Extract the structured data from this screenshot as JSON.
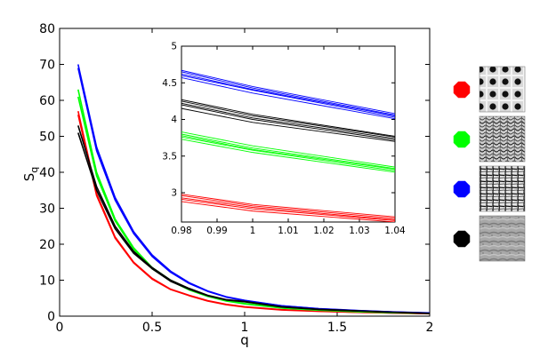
{
  "chart_data": [
    {
      "type": "line",
      "xlabel": "q",
      "ylabel": "S",
      "ylabel_sub": "q",
      "xlim": [
        0,
        2
      ],
      "ylim": [
        0,
        80
      ],
      "grid": false,
      "x_ticks": [
        0,
        0.5,
        1,
        1.5,
        2
      ],
      "x_tick_labels": [
        "0",
        "0.5",
        "1",
        "1.5",
        "2"
      ],
      "y_ticks": [
        0,
        10,
        20,
        30,
        40,
        50,
        60,
        70,
        80
      ],
      "y_tick_labels": [
        "0",
        "10",
        "20",
        "30",
        "40",
        "50",
        "60",
        "70",
        "80"
      ],
      "series": [
        {
          "color": "#ff0000",
          "x": [
            0.1,
            0.2,
            0.3,
            0.4,
            0.5,
            0.6,
            0.7,
            0.8,
            0.9,
            1.0,
            1.2,
            1.4,
            1.6,
            1.8,
            2.0
          ],
          "lines": [
            [
              57,
              34,
              22,
              15,
              10.5,
              7.5,
              5.8,
              4.3,
              3.3,
              2.6,
              1.8,
              1.4,
              1.1,
              0.9,
              0.7
            ],
            [
              56,
              33.5,
              21.7,
              14.8,
              10.3,
              7.4,
              5.7,
              4.2,
              3.2,
              2.5,
              1.7,
              1.35,
              1.05,
              0.85,
              0.65
            ]
          ]
        },
        {
          "color": "#00ff00",
          "x": [
            0.1,
            0.2,
            0.3,
            0.4,
            0.5,
            0.6,
            0.7,
            0.8,
            0.9,
            1.0,
            1.2,
            1.4,
            1.6,
            1.8,
            2.0
          ],
          "lines": [
            [
              63,
              40,
              27,
              19,
              13.5,
              10,
              7.5,
              5.6,
              4.3,
              3.5,
              2.3,
              1.7,
              1.3,
              1.0,
              0.8
            ],
            [
              61,
              39,
              26.5,
              18.6,
              13.2,
              9.8,
              7.3,
              5.5,
              4.2,
              3.4,
              2.25,
              1.65,
              1.25,
              0.95,
              0.75
            ]
          ]
        },
        {
          "color": "#0000ff",
          "x": [
            0.1,
            0.2,
            0.3,
            0.4,
            0.5,
            0.6,
            0.7,
            0.8,
            0.9,
            1.0,
            1.2,
            1.4,
            1.6,
            1.8,
            2.0
          ],
          "lines": [
            [
              70,
              47,
              33,
              23.5,
              17,
              12.5,
              9.3,
              7,
              5.4,
              4.4,
              2.9,
              2.1,
              1.6,
              1.2,
              0.9
            ],
            [
              69,
              46,
              32.3,
              23,
              16.6,
              12.2,
              9.1,
              6.9,
              5.3,
              4.3,
              2.85,
              2.05,
              1.55,
              1.15,
              0.85
            ]
          ]
        },
        {
          "color": "#000000",
          "x": [
            0.1,
            0.2,
            0.3,
            0.4,
            0.5,
            0.6,
            0.7,
            0.8,
            0.9,
            1.0,
            1.2,
            1.4,
            1.6,
            1.8,
            2.0
          ],
          "lines": [
            [
              53,
              36,
              25,
              18,
              13.5,
              10,
              7.7,
              5.8,
              4.6,
              4.1,
              2.6,
              1.9,
              1.5,
              1.1,
              0.8
            ],
            [
              51,
              35,
              24.3,
              17.5,
              13.2,
              9.7,
              7.5,
              5.7,
              4.5,
              4.0,
              2.55,
              1.85,
              1.45,
              1.05,
              0.75
            ]
          ]
        }
      ]
    },
    {
      "type": "line",
      "role": "inset",
      "xlim": [
        0.98,
        1.04
      ],
      "ylim": [
        2.6,
        5.0
      ],
      "x_ticks": [
        0.98,
        0.99,
        1.0,
        1.01,
        1.02,
        1.03,
        1.04
      ],
      "x_tick_labels": [
        "0.98",
        "0.99",
        "1",
        "1.01",
        "1.02",
        "1.03",
        "1.04"
      ],
      "y_ticks": [
        3,
        3.5,
        4,
        4.5,
        5
      ],
      "y_tick_labels": [
        "3",
        "3.5",
        "4",
        "4.5",
        "5"
      ],
      "series": [
        {
          "color": "#0000ff",
          "x": [
            0.98,
            1.0,
            1.04
          ],
          "lines": [
            [
              4.67,
              4.45,
              4.08
            ],
            [
              4.65,
              4.43,
              4.06
            ],
            [
              4.62,
              4.41,
              4.05
            ],
            [
              4.6,
              4.4,
              4.03
            ],
            [
              4.57,
              4.36,
              4.01
            ]
          ]
        },
        {
          "color": "#000000",
          "x": [
            0.98,
            1.0,
            1.04
          ],
          "lines": [
            [
              4.27,
              4.07,
              3.77
            ],
            [
              4.25,
              4.05,
              3.76
            ],
            [
              4.22,
              4.02,
              3.74
            ],
            [
              4.2,
              4.0,
              3.72
            ],
            [
              4.15,
              3.96,
              3.7
            ]
          ]
        },
        {
          "color": "#00ff00",
          "x": [
            0.98,
            1.0,
            1.04
          ],
          "lines": [
            [
              3.83,
              3.64,
              3.35
            ],
            [
              3.8,
              3.61,
              3.33
            ],
            [
              3.78,
              3.59,
              3.32
            ],
            [
              3.76,
              3.58,
              3.3
            ],
            [
              3.73,
              3.55,
              3.28
            ]
          ]
        },
        {
          "color": "#ff0000",
          "x": [
            0.98,
            1.0,
            1.04
          ],
          "lines": [
            [
              2.98,
              2.84,
              2.67
            ],
            [
              2.96,
              2.82,
              2.65
            ],
            [
              2.93,
              2.8,
              2.63
            ],
            [
              2.91,
              2.78,
              2.62
            ],
            [
              2.88,
              2.75,
              2.6
            ]
          ]
        }
      ]
    }
  ],
  "legend": [
    {
      "color": "#ff0000",
      "texture": "dot-grid-icon"
    },
    {
      "color": "#00ff00",
      "texture": "wavy-weave-icon"
    },
    {
      "color": "#0000ff",
      "texture": "woven-mesh-icon"
    },
    {
      "color": "#000000",
      "texture": "diffuse-noise-icon"
    }
  ]
}
